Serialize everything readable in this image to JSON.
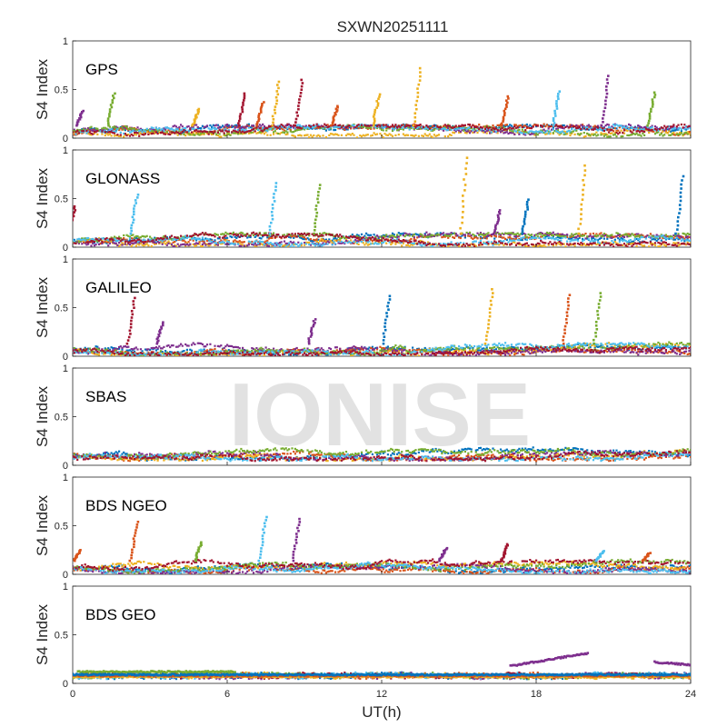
{
  "chart_data": {
    "type": "scatter",
    "title": "SXWN20251111",
    "xlabel": "UT(h)",
    "ylabel": "S4 Index",
    "xlim": [
      0,
      24
    ],
    "ylim": [
      0,
      1
    ],
    "xticks": [
      0,
      6,
      12,
      18,
      24
    ],
    "xtick_labels": [
      "0",
      "6",
      "12",
      "18",
      "24"
    ],
    "yticks": [
      0,
      0.5,
      1
    ],
    "ytick_labels": [
      "0",
      "0.5",
      "1"
    ],
    "watermark": "IONISE",
    "series_colors": [
      "#0072BD",
      "#D95319",
      "#EDB120",
      "#7E2F8E",
      "#77AC30",
      "#4DBEEE",
      "#A2142F"
    ],
    "panels": [
      {
        "label": "GPS",
        "baseline": [
          0.02,
          0.13
        ],
        "spikes": [
          {
            "x": 0.4,
            "y": 0.28,
            "series": 3
          },
          {
            "x": 1.6,
            "y": 0.46,
            "series": 4
          },
          {
            "x": 4.9,
            "y": 0.3,
            "series": 2
          },
          {
            "x": 6.7,
            "y": 0.46,
            "series": 6
          },
          {
            "x": 7.4,
            "y": 0.37,
            "series": 1
          },
          {
            "x": 8.0,
            "y": 0.58,
            "series": 2
          },
          {
            "x": 8.9,
            "y": 0.6,
            "series": 6
          },
          {
            "x": 10.3,
            "y": 0.33,
            "series": 1
          },
          {
            "x": 11.9,
            "y": 0.45,
            "series": 2
          },
          {
            "x": 13.5,
            "y": 0.72,
            "series": 2
          },
          {
            "x": 16.9,
            "y": 0.43,
            "series": 1
          },
          {
            "x": 18.9,
            "y": 0.48,
            "series": 5
          },
          {
            "x": 20.8,
            "y": 0.64,
            "series": 3
          },
          {
            "x": 22.6,
            "y": 0.47,
            "series": 4
          }
        ]
      },
      {
        "label": "GLONASS",
        "baseline": [
          0.02,
          0.14
        ],
        "spikes": [
          {
            "x": 0.1,
            "y": 0.42,
            "series": 6
          },
          {
            "x": 2.5,
            "y": 0.54,
            "series": 5
          },
          {
            "x": 7.9,
            "y": 0.66,
            "series": 5
          },
          {
            "x": 9.6,
            "y": 0.64,
            "series": 4
          },
          {
            "x": 15.3,
            "y": 0.92,
            "series": 2
          },
          {
            "x": 16.6,
            "y": 0.38,
            "series": 3
          },
          {
            "x": 17.7,
            "y": 0.49,
            "series": 0
          },
          {
            "x": 19.9,
            "y": 0.84,
            "series": 2
          },
          {
            "x": 23.7,
            "y": 0.73,
            "series": 0
          }
        ]
      },
      {
        "label": "GALILEO",
        "baseline": [
          0.02,
          0.13
        ],
        "spikes": [
          {
            "x": 2.4,
            "y": 0.6,
            "series": 6
          },
          {
            "x": 3.5,
            "y": 0.35,
            "series": 3
          },
          {
            "x": 9.4,
            "y": 0.38,
            "series": 3
          },
          {
            "x": 12.3,
            "y": 0.62,
            "series": 0
          },
          {
            "x": 16.3,
            "y": 0.69,
            "series": 2
          },
          {
            "x": 19.3,
            "y": 0.63,
            "series": 1
          },
          {
            "x": 20.5,
            "y": 0.65,
            "series": 4
          }
        ]
      },
      {
        "label": "SBAS",
        "baseline": [
          0.06,
          0.17
        ],
        "spikes": []
      },
      {
        "label": "BDS NGEO",
        "baseline": [
          0.02,
          0.14
        ],
        "spikes": [
          {
            "x": 0.3,
            "y": 0.25,
            "series": 1
          },
          {
            "x": 2.5,
            "y": 0.54,
            "series": 1
          },
          {
            "x": 5.0,
            "y": 0.33,
            "series": 4
          },
          {
            "x": 7.5,
            "y": 0.59,
            "series": 5
          },
          {
            "x": 8.8,
            "y": 0.57,
            "series": 3
          },
          {
            "x": 14.5,
            "y": 0.27,
            "series": 3
          },
          {
            "x": 16.9,
            "y": 0.31,
            "series": 6
          },
          {
            "x": 20.6,
            "y": 0.24,
            "series": 5
          },
          {
            "x": 22.4,
            "y": 0.22,
            "series": 1
          }
        ]
      },
      {
        "label": "BDS GEO",
        "baseline": [
          0.06,
          0.1
        ],
        "spikes": [],
        "tracks": [
          {
            "series": 4,
            "x": [
              0.2,
              6.3
            ],
            "y": [
              0.12,
              0.12
            ]
          },
          {
            "series": 2,
            "x": [
              0.0,
              24.0
            ],
            "y": [
              0.07,
              0.07
            ]
          },
          {
            "series": 1,
            "x": [
              0.0,
              24.0
            ],
            "y": [
              0.08,
              0.08
            ]
          },
          {
            "series": 0,
            "x": [
              0.0,
              24.0
            ],
            "y": [
              0.09,
              0.09
            ]
          },
          {
            "series": 3,
            "x": [
              17.0,
              20.0
            ],
            "y": [
              0.18,
              0.31
            ]
          },
          {
            "series": 3,
            "x": [
              22.6,
              24.0
            ],
            "y": [
              0.22,
              0.19
            ]
          }
        ]
      }
    ]
  }
}
